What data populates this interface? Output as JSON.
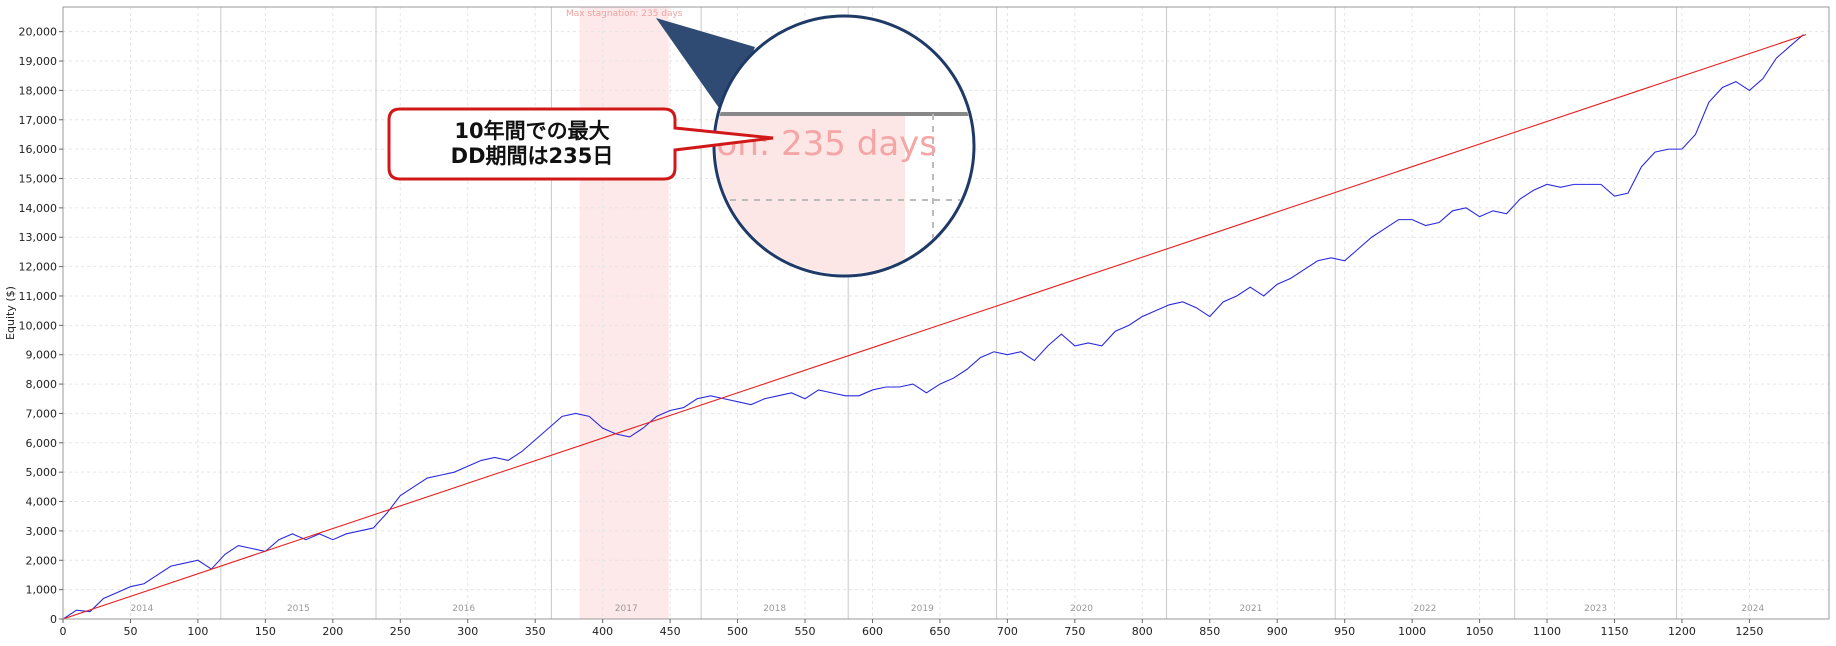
{
  "chart_data": {
    "type": "line",
    "ylabel": "Equity ($)",
    "xlim": [
      0,
      1309
    ],
    "ylim": [
      0,
      20840
    ],
    "grid": true,
    "xticks": [
      0,
      50,
      100,
      150,
      200,
      250,
      300,
      350,
      400,
      450,
      500,
      550,
      600,
      650,
      700,
      750,
      800,
      850,
      900,
      950,
      1000,
      1050,
      1100,
      1150,
      1200,
      1250
    ],
    "yticks": [
      0,
      {
        "value": 1000,
        "label": "1,000"
      },
      {
        "value": 2000,
        "label": "2,000"
      },
      {
        "value": 3000,
        "label": "3,000"
      },
      {
        "value": 4000,
        "label": "4,000"
      },
      {
        "value": 5000,
        "label": "5,000"
      },
      {
        "value": 6000,
        "label": "6,000"
      },
      {
        "value": 7000,
        "label": "7,000"
      },
      {
        "value": 8000,
        "label": "8,000"
      },
      {
        "value": 9000,
        "label": "9,000"
      },
      {
        "value": 10000,
        "label": "10,000"
      },
      {
        "value": 11000,
        "label": "11,000"
      },
      {
        "value": 12000,
        "label": "12,000"
      },
      {
        "value": 13000,
        "label": "13,000"
      },
      {
        "value": 14000,
        "label": "14,000"
      },
      {
        "value": 15000,
        "label": "15,000"
      },
      {
        "value": 16000,
        "label": "16,000"
      },
      {
        "value": 17000,
        "label": "17,000"
      },
      {
        "value": 18000,
        "label": "18,000"
      },
      {
        "value": 19000,
        "label": "19,000"
      },
      {
        "value": 20000,
        "label": "20,000"
      }
    ],
    "years": {
      "labels": [
        "2014",
        "2015",
        "2016",
        "2017",
        "2018",
        "2019",
        "2020",
        "2021",
        "2022",
        "2023",
        "2024"
      ],
      "boundaries": [
        117,
        232,
        362,
        473,
        582,
        692,
        818,
        943,
        1076,
        1196
      ]
    },
    "stagnation": {
      "label": "Max stagnation: 235 days",
      "start": 383,
      "end": 449
    },
    "series": [
      {
        "color": "#2a2ae0",
        "x": [
          0,
          10,
          20,
          30,
          40,
          50,
          60,
          70,
          80,
          90,
          100,
          110,
          120,
          130,
          140,
          150,
          160,
          170,
          180,
          190,
          200,
          210,
          220,
          230,
          240,
          250,
          260,
          270,
          280,
          290,
          300,
          310,
          320,
          330,
          340,
          350,
          360,
          370,
          380,
          390,
          400,
          410,
          420,
          430,
          440,
          450,
          460,
          470,
          480,
          490,
          500,
          510,
          520,
          530,
          540,
          550,
          560,
          570,
          580,
          590,
          600,
          610,
          620,
          630,
          640,
          650,
          660,
          670,
          680,
          690,
          700,
          710,
          720,
          730,
          740,
          750,
          760,
          770,
          780,
          790,
          800,
          810,
          820,
          830,
          840,
          850,
          860,
          870,
          880,
          890,
          900,
          910,
          920,
          930,
          940,
          950,
          960,
          970,
          980,
          990,
          1000,
          1010,
          1020,
          1030,
          1040,
          1050,
          1060,
          1070,
          1080,
          1090,
          1100,
          1110,
          1120,
          1130,
          1140,
          1150,
          1160,
          1170,
          1180,
          1190,
          1200,
          1210,
          1220,
          1230,
          1240,
          1250,
          1260,
          1270,
          1280,
          1290
        ],
        "values": [
          0,
          300,
          250,
          700,
          900,
          1100,
          1200,
          1500,
          1800,
          1900,
          2000,
          1700,
          2200,
          2500,
          2400,
          2300,
          2700,
          2900,
          2700,
          2900,
          2700,
          2900,
          3000,
          3100,
          3600,
          4200,
          4500,
          4800,
          4900,
          5000,
          5200,
          5400,
          5500,
          5400,
          5700,
          6100,
          6500,
          6900,
          7000,
          6900,
          6500,
          6300,
          6200,
          6500,
          6900,
          7100,
          7200,
          7500,
          7600,
          7500,
          7400,
          7300,
          7500,
          7600,
          7700,
          7500,
          7800,
          7700,
          7600,
          7600,
          7800,
          7900,
          7900,
          8000,
          7700,
          8000,
          8200,
          8500,
          8900,
          9100,
          9000,
          9100,
          8800,
          9300,
          9700,
          9300,
          9400,
          9300,
          9800,
          10000,
          10300,
          10500,
          10700,
          10800,
          10600,
          10300,
          10800,
          11000,
          11300,
          11000,
          11400,
          11600,
          11900,
          12200,
          12300,
          12200,
          12600,
          13000,
          13300,
          13600,
          13600,
          13400,
          13500,
          13900,
          14000,
          13700,
          13900,
          13800,
          14300,
          14600,
          14800,
          14700,
          14800,
          14800,
          14800,
          14400,
          14500,
          15400,
          15900,
          16000,
          16000,
          16500,
          17600,
          18100,
          18300,
          18000,
          18400,
          19100,
          19500,
          19900
        ]
      },
      {
        "color": "#e52020",
        "x": [
          0,
          1292
        ],
        "values": [
          0,
          19900
        ]
      }
    ],
    "callout": {
      "lines": [
        "10年間での最大",
        "DD期間は235日"
      ]
    }
  }
}
